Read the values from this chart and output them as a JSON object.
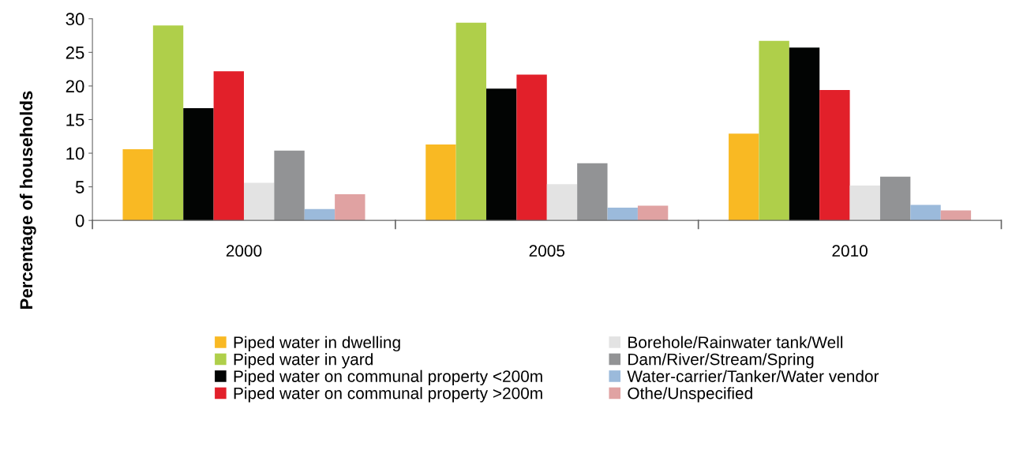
{
  "chart_data": {
    "type": "bar",
    "ylabel": "Percentage of households",
    "categories": [
      "2000",
      "2005",
      "2010"
    ],
    "ylim": [
      0,
      30
    ],
    "yticks": [
      0,
      5,
      10,
      15,
      20,
      25,
      30
    ],
    "grid": false,
    "legend": "bottom",
    "series": [
      {
        "name": "Piped water in dwelling",
        "color": "#f9b923",
        "values": [
          10.6,
          11.3,
          12.9
        ]
      },
      {
        "name": "Piped water in yard",
        "color": "#afcf4a",
        "values": [
          29.0,
          29.4,
          26.7
        ]
      },
      {
        "name": "Piped water on communal property <200m",
        "color": "#020403",
        "values": [
          16.7,
          19.6,
          25.7
        ]
      },
      {
        "name": "Piped water on communal property >200m",
        "color": "#e2202a",
        "values": [
          22.2,
          21.7,
          19.4
        ]
      },
      {
        "name": "Borehole/Rainwater tank/Well",
        "color": "#e3e3e3",
        "values": [
          5.6,
          5.4,
          5.2
        ]
      },
      {
        "name": "Dam/River/Stream/Spring",
        "color": "#929395",
        "values": [
          10.4,
          8.5,
          6.5
        ]
      },
      {
        "name": "Water-carrier/Tanker/Water vendor",
        "color": "#9bbadb",
        "values": [
          1.7,
          1.9,
          2.3
        ]
      },
      {
        "name": "Othe/Unspecified",
        "color": "#e0a2a2",
        "values": [
          3.9,
          2.2,
          1.5
        ]
      }
    ]
  }
}
